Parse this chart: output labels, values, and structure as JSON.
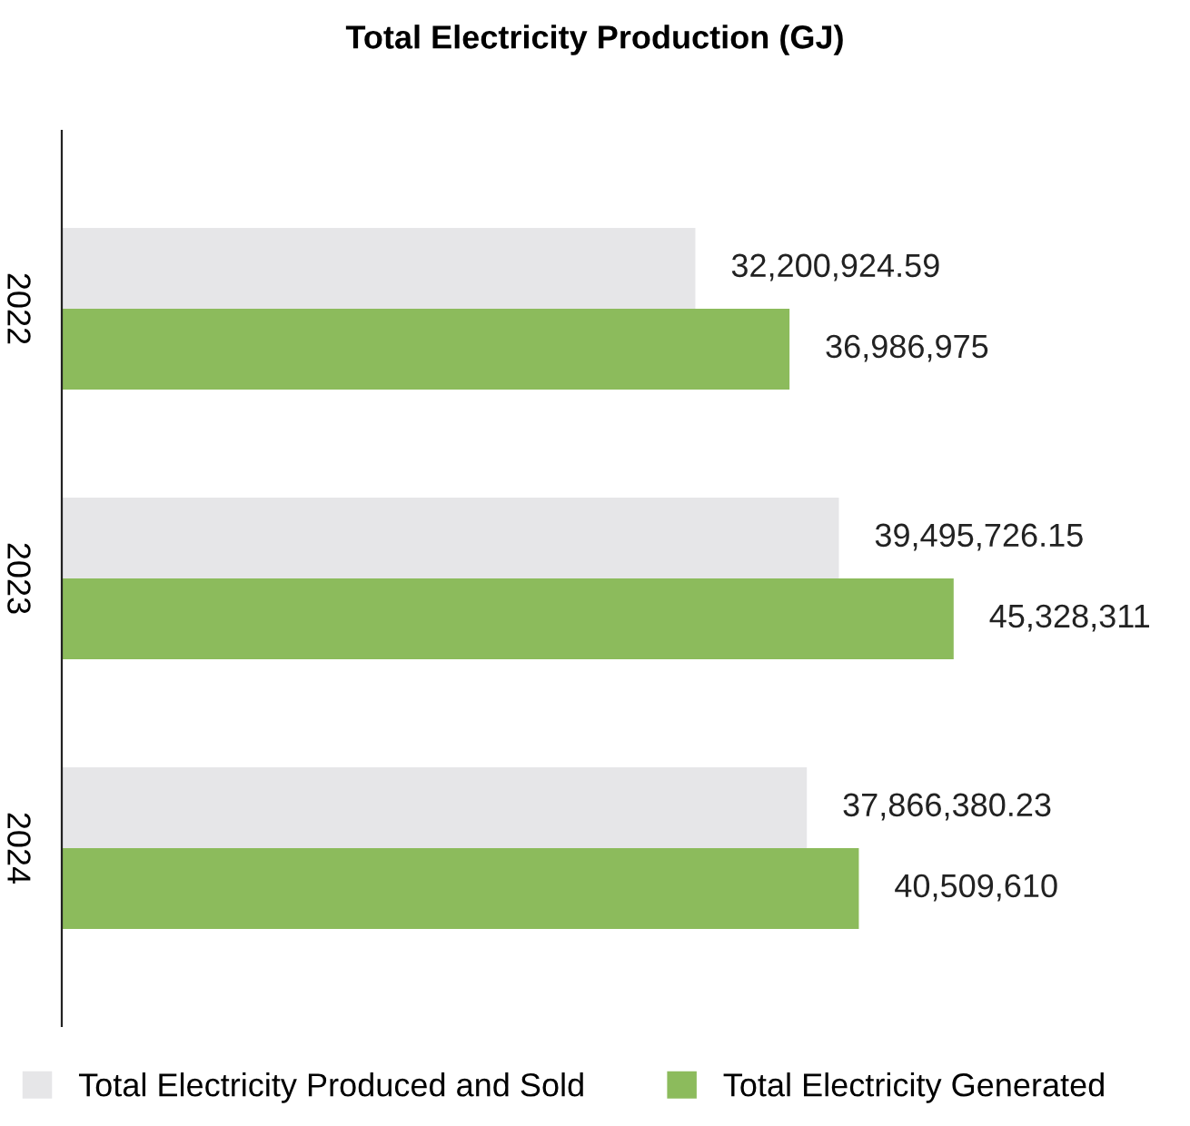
{
  "chart_data": {
    "type": "bar",
    "orientation": "horizontal",
    "title": "Total Electricity Production (GJ)",
    "categories": [
      "2022",
      "2023",
      "2024"
    ],
    "series": [
      {
        "name": "Total Electricity Produced and Sold",
        "color": "#e6e6e8",
        "values": [
          32200924.59,
          39495726.15,
          37866380.23
        ],
        "value_labels": [
          "32,200,924.59",
          "39,495,726.15",
          "37,866,380.23"
        ]
      },
      {
        "name": "Total Electricity Generated",
        "color": "#8cbb5c",
        "values": [
          36986975,
          45328311,
          40509610
        ],
        "value_labels": [
          "36,986,975",
          "45,328,311",
          "40,509,610"
        ]
      }
    ],
    "legend": "bottom",
    "grid": false,
    "tick_labels": "y"
  }
}
